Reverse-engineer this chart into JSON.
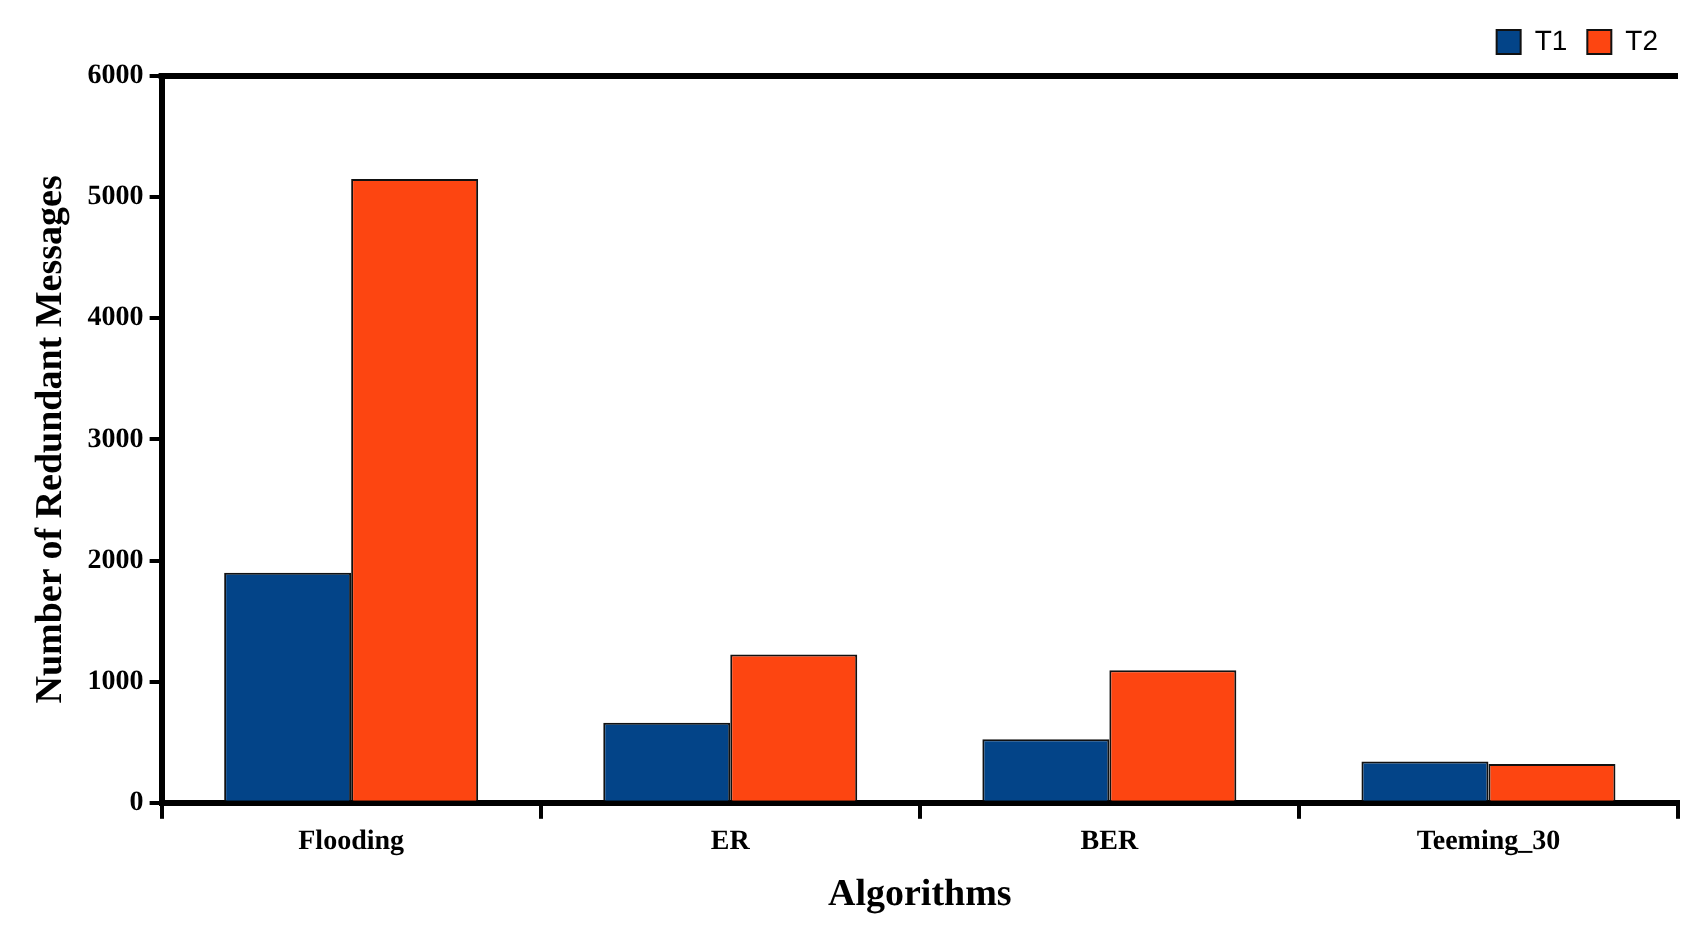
{
  "chart_data": {
    "type": "bar",
    "xlabel": "Algorithms",
    "ylabel": "Number of Redundant Messages",
    "categories": [
      "Flooding",
      "ER",
      "BER",
      "Teeming_30"
    ],
    "series": [
      {
        "name": "T1",
        "color": "#034488",
        "values": [
          1900,
          660,
          525,
          340
        ]
      },
      {
        "name": "T2",
        "color": "#fd4511",
        "values": [
          5150,
          1225,
          1095,
          320
        ]
      }
    ],
    "ylim": [
      0,
      6000
    ],
    "yticks": [
      0,
      1000,
      2000,
      3000,
      4000,
      5000,
      6000
    ],
    "grid": false,
    "legend": "top right"
  }
}
